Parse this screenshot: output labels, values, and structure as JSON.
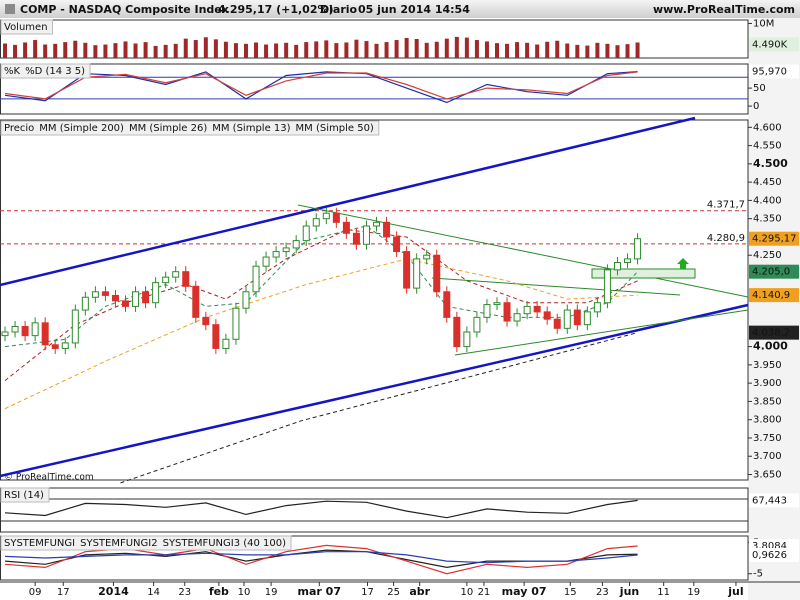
{
  "header": {
    "symbol": "COMP - NASDAQ Composite Index",
    "quote": "4.295,17 (+1,02%)",
    "period": "Diario",
    "datetime": "05 jun 2014 14:54",
    "site": "www.ProRealTime.com",
    "copyright": "© ProRealTime.com"
  },
  "chart_data": [
    {
      "type": "candlestick",
      "title": "Precio",
      "xlim": [
        -0.5,
        74
      ],
      "ylim": [
        3635,
        4620
      ],
      "xticks": [
        {
          "value": 3,
          "label": "09"
        },
        {
          "value": 5.8,
          "label": "17"
        },
        {
          "value": 10.8,
          "label": "2014"
        },
        {
          "value": 14.8,
          "label": "14"
        },
        {
          "value": 17.9,
          "label": "23"
        },
        {
          "value": 21.3,
          "label": "feb"
        },
        {
          "value": 23.8,
          "label": "10"
        },
        {
          "value": 26.5,
          "label": "19"
        },
        {
          "value": 31.3,
          "label": "mar 07"
        },
        {
          "value": 36.1,
          "label": "17"
        },
        {
          "value": 38.7,
          "label": "25"
        },
        {
          "value": 41.3,
          "label": "abr"
        },
        {
          "value": 46,
          "label": "10"
        },
        {
          "value": 47.7,
          "label": "21"
        },
        {
          "value": 51.7,
          "label": "may 07"
        },
        {
          "value": 56.3,
          "label": "15"
        },
        {
          "value": 59.5,
          "label": "23"
        },
        {
          "value": 62.2,
          "label": "jun"
        },
        {
          "value": 65.6,
          "label": "11"
        },
        {
          "value": 68.6,
          "label": "19"
        },
        {
          "value": 72.8,
          "label": "jul"
        }
      ],
      "yticks": [
        {
          "value": 4600,
          "label": "4.600"
        },
        {
          "value": 4550,
          "label": "4.550"
        },
        {
          "value": 4500,
          "label": "4.500"
        },
        {
          "value": 4450,
          "label": "4.450"
        },
        {
          "value": 4400,
          "label": "4.400"
        },
        {
          "value": 4350,
          "label": "4.350"
        },
        {
          "value": 4250,
          "label": "4.250"
        },
        {
          "value": 4000,
          "label": "4.000"
        },
        {
          "value": 3950,
          "label": "3.950"
        },
        {
          "value": 3900,
          "label": "3.900"
        },
        {
          "value": 3850,
          "label": "3.850"
        },
        {
          "value": 3800,
          "label": "3.800"
        },
        {
          "value": 3750,
          "label": "3.750"
        },
        {
          "value": 3700,
          "label": "3.700"
        },
        {
          "value": 3650,
          "label": "3.650"
        }
      ],
      "levels": [
        {
          "value": 4371.7,
          "label": "4.371,7"
        },
        {
          "value": 4280.9,
          "label": "4.280,9"
        }
      ],
      "candles": {
        "name": "Precio",
        "up_color": "#2e8b2e",
        "down_color": "#d9302c",
        "label_color": "#f0a020",
        "open": [
          4030,
          4040,
          4055,
          4030,
          4065,
          4005,
          3995,
          4010,
          4100,
          4135,
          4150,
          4140,
          4125,
          4110,
          4150,
          4120,
          4175,
          4190,
          4205,
          4165,
          4080,
          4060,
          3995,
          4020,
          4105,
          4150,
          4220,
          4245,
          4260,
          4270,
          4290,
          4330,
          4350,
          4365,
          4340,
          4310,
          4280,
          4330,
          4340,
          4300,
          4260,
          4160,
          4240,
          4250,
          4150,
          4080,
          4000,
          4040,
          4080,
          4115,
          4120,
          4070,
          4090,
          4110,
          4095,
          4075,
          4050,
          4100,
          4060,
          4095,
          4120,
          4210,
          4230,
          4240
        ],
        "high": [
          4055,
          4070,
          4070,
          4080,
          4080,
          4020,
          4025,
          4115,
          4150,
          4165,
          4165,
          4155,
          4140,
          4165,
          4165,
          4190,
          4205,
          4220,
          4220,
          4180,
          4095,
          4075,
          4035,
          4120,
          4165,
          4235,
          4260,
          4275,
          4285,
          4305,
          4345,
          4365,
          4380,
          4380,
          4355,
          4325,
          4345,
          4355,
          4355,
          4315,
          4275,
          4255,
          4265,
          4265,
          4165,
          4095,
          4055,
          4095,
          4130,
          4135,
          4135,
          4105,
          4125,
          4125,
          4110,
          4090,
          4115,
          4115,
          4110,
          4135,
          4225,
          4245,
          4255,
          4310
        ],
        "low": [
          4015,
          4025,
          4015,
          4015,
          3990,
          3980,
          3980,
          3995,
          4085,
          4120,
          4125,
          4110,
          4095,
          4095,
          4105,
          4105,
          4160,
          4175,
          4150,
          4065,
          4045,
          3980,
          3980,
          4005,
          4090,
          4135,
          4205,
          4230,
          4245,
          4255,
          4275,
          4315,
          4335,
          4325,
          4295,
          4265,
          4265,
          4315,
          4285,
          4245,
          4145,
          4145,
          4225,
          4135,
          4065,
          3985,
          3985,
          4025,
          4065,
          4100,
          4055,
          4055,
          4075,
          4080,
          4060,
          4035,
          4035,
          4045,
          4045,
          4080,
          4105,
          4195,
          4215,
          4225
        ],
        "close": [
          4040,
          4055,
          4030,
          4065,
          4005,
          3995,
          4010,
          4100,
          4135,
          4150,
          4140,
          4125,
          4110,
          4150,
          4120,
          4175,
          4190,
          4205,
          4165,
          4080,
          4060,
          3995,
          4020,
          4105,
          4150,
          4220,
          4245,
          4260,
          4270,
          4290,
          4330,
          4350,
          4365,
          4340,
          4310,
          4280,
          4330,
          4340,
          4300,
          4260,
          4160,
          4240,
          4250,
          4150,
          4080,
          4000,
          4040,
          4080,
          4115,
          4120,
          4070,
          4090,
          4110,
          4095,
          4075,
          4050,
          4100,
          4060,
          4095,
          4120,
          4210,
          4230,
          4240,
          4295.17
        ],
        "value_labels": [
          null,
          null,
          null,
          null,
          null,
          null,
          null,
          null,
          null,
          null,
          null,
          null,
          null,
          null,
          null,
          null,
          null,
          null,
          null,
          null,
          null,
          null,
          null,
          null,
          null,
          null,
          null,
          null,
          null,
          null,
          null,
          null,
          null,
          null,
          null,
          null,
          null,
          null,
          null,
          null,
          null,
          null,
          null,
          null,
          null,
          null,
          null,
          null,
          null,
          null,
          null,
          null,
          null,
          null,
          null,
          null,
          null,
          null,
          null,
          null,
          null,
          null,
          null,
          "4.295,17"
        ]
      },
      "series": [
        {
          "name": "MM (Simple 200)",
          "color": "#222222",
          "x": [
            11.5,
            29.5,
            45.5,
            63
          ],
          "values": [
            3627,
            3797,
            3912,
            4038.2
          ],
          "value_labels": [
            null,
            null,
            null,
            "4.038,2"
          ]
        },
        {
          "name": "MM (Simple 26)",
          "color": "#b02020",
          "x": [
            0,
            7,
            12,
            18,
            22,
            28,
            34,
            40,
            46,
            52,
            58,
            63
          ],
          "values": [
            3907,
            4060,
            4120,
            4170,
            4130,
            4240,
            4320,
            4300,
            4180,
            4120,
            4120,
            4180
          ]
        },
        {
          "name": "MM (Simple 13)",
          "color": "#2e8b57",
          "x": [
            0,
            6,
            10,
            16,
            20,
            24,
            30,
            36,
            40,
            44,
            50,
            56,
            60,
            63
          ],
          "values": [
            4000,
            4020,
            4110,
            4170,
            4110,
            4120,
            4290,
            4330,
            4250,
            4110,
            4080,
            4080,
            4120,
            4205.0
          ],
          "value_labels": [
            null,
            null,
            null,
            null,
            null,
            null,
            null,
            null,
            null,
            null,
            null,
            null,
            null,
            "4.205,0"
          ]
        },
        {
          "name": "MM (Simple 50)",
          "color": "#f0a020",
          "x": [
            0,
            10,
            20,
            30,
            40,
            50,
            56,
            63
          ],
          "values": [
            3830,
            3960,
            4080,
            4170,
            4240,
            4180,
            4130,
            4140.9
          ],
          "value_labels": [
            null,
            null,
            null,
            null,
            null,
            null,
            null,
            "4.140,9"
          ]
        }
      ]
    },
    {
      "type": "bar",
      "title": "Volumen",
      "color": "#a02828",
      "xlim": [
        -0.5,
        74
      ],
      "ylim": [
        0,
        11000
      ],
      "yticks": [
        {
          "value": 10000,
          "label": "10M"
        }
      ],
      "values": [
        4200,
        3800,
        4500,
        5200,
        3900,
        4100,
        4600,
        5000,
        4400,
        3700,
        3900,
        4300,
        4800,
        4200,
        4600,
        3500,
        3800,
        4100,
        5600,
        5200,
        6000,
        5400,
        4700,
        4300,
        4100,
        4500,
        3900,
        4200,
        4400,
        3800,
        4600,
        4800,
        5100,
        4300,
        4500,
        5300,
        4900,
        4100,
        4600,
        5200,
        5800,
        5500,
        4400,
        4700,
        5600,
        6100,
        5900,
        5200,
        4800,
        4300,
        4100,
        4600,
        4400,
        3900,
        4700,
        5000,
        4200,
        3800,
        3600,
        4400,
        4100,
        3700,
        4000,
        4490
      ],
      "value_labels": [
        null,
        null,
        null,
        null,
        null,
        null,
        null,
        null,
        null,
        null,
        null,
        null,
        null,
        null,
        null,
        null,
        null,
        null,
        null,
        null,
        null,
        null,
        null,
        null,
        null,
        null,
        null,
        null,
        null,
        null,
        null,
        null,
        null,
        null,
        null,
        null,
        null,
        null,
        null,
        null,
        null,
        null,
        null,
        null,
        null,
        null,
        null,
        null,
        null,
        null,
        null,
        null,
        null,
        null,
        null,
        null,
        null,
        null,
        null,
        null,
        null,
        null,
        null,
        "4.490K"
      ]
    },
    {
      "type": "line",
      "xlim": [
        -0.5,
        74
      ],
      "ylim": [
        -22,
        117
      ],
      "yticks": [
        50,
        0
      ],
      "levels": [
        80,
        20
      ],
      "series": [
        {
          "name": "%K",
          "color": "#1f2f9f",
          "x": [
            0,
            4,
            8,
            12,
            16,
            20,
            24,
            28,
            32,
            36,
            40,
            44,
            48,
            52,
            56,
            60,
            63
          ],
          "values": [
            30,
            15,
            90,
            85,
            60,
            95,
            20,
            85,
            95,
            90,
            50,
            10,
            60,
            40,
            30,
            90,
            95.97
          ],
          "value_labels": [
            null,
            null,
            null,
            null,
            null,
            null,
            null,
            null,
            null,
            null,
            null,
            null,
            null,
            null,
            null,
            null,
            "95,970"
          ]
        },
        {
          "name": "%D (14 3 5)",
          "color": "#d04040",
          "x": [
            0,
            4,
            8,
            12,
            16,
            20,
            24,
            28,
            32,
            36,
            40,
            44,
            48,
            52,
            56,
            60,
            63
          ],
          "values": [
            35,
            20,
            80,
            88,
            65,
            90,
            30,
            70,
            92,
            92,
            60,
            20,
            50,
            45,
            35,
            85,
            95
          ]
        }
      ]
    },
    {
      "type": "line",
      "xlim": [
        -0.5,
        74
      ],
      "ylim": [
        10,
        90
      ],
      "levels": [
        70,
        30
      ],
      "series": [
        {
          "name": "RSI (14)",
          "color": "#222222",
          "x": [
            0,
            4,
            8,
            12,
            16,
            20,
            24,
            28,
            32,
            36,
            40,
            44,
            48,
            52,
            56,
            60,
            63
          ],
          "values": [
            45,
            40,
            62,
            60,
            55,
            63,
            42,
            58,
            66,
            64,
            48,
            36,
            52,
            46,
            44,
            60,
            67.443
          ],
          "value_labels": [
            null,
            null,
            null,
            null,
            null,
            null,
            null,
            null,
            null,
            null,
            null,
            null,
            null,
            null,
            null,
            null,
            "67,443"
          ]
        }
      ]
    },
    {
      "type": "line",
      "xlim": [
        -0.5,
        74
      ],
      "ylim": [
        -7,
        7
      ],
      "yticks": [
        5,
        -5
      ],
      "series": [
        {
          "name": "SYSTEMFUNGI",
          "color": "#222222",
          "x": [
            0,
            4,
            8,
            12,
            16,
            20,
            24,
            28,
            32,
            36,
            40,
            44,
            48,
            52,
            56,
            60,
            63
          ],
          "values": [
            -1,
            -2,
            1,
            1.5,
            0.5,
            2,
            -1,
            1,
            2.5,
            2,
            -0.5,
            -3,
            -1,
            -1,
            -1,
            1,
            1.2
          ]
        },
        {
          "name": "SYSTEMFUNGI2",
          "color": "#e03030",
          "x": [
            0,
            4,
            8,
            12,
            16,
            20,
            24,
            28,
            32,
            36,
            40,
            44,
            48,
            52,
            56,
            60,
            63
          ],
          "values": [
            -2,
            -3,
            2,
            3,
            1,
            3,
            -2,
            2,
            4,
            3,
            -1,
            -5,
            -2,
            -3,
            -2,
            3,
            3.8084
          ],
          "value_labels": [
            null,
            null,
            null,
            null,
            null,
            null,
            null,
            null,
            null,
            null,
            null,
            null,
            null,
            null,
            null,
            null,
            "3,8084"
          ]
        },
        {
          "name": "SYSTEMFUNGI3 (40 100)",
          "color": "#2a3fb0",
          "x": [
            0,
            4,
            8,
            12,
            16,
            20,
            24,
            28,
            32,
            36,
            40,
            44,
            48,
            52,
            56,
            60,
            63
          ],
          "values": [
            0.5,
            0,
            0.5,
            1,
            1,
            1.5,
            1,
            1,
            2,
            2,
            1,
            -1,
            -1.5,
            -1,
            -1,
            0,
            0.9626
          ],
          "value_labels": [
            null,
            null,
            null,
            null,
            null,
            null,
            null,
            null,
            null,
            null,
            null,
            null,
            null,
            null,
            null,
            null,
            "0,9626"
          ]
        }
      ]
    }
  ]
}
